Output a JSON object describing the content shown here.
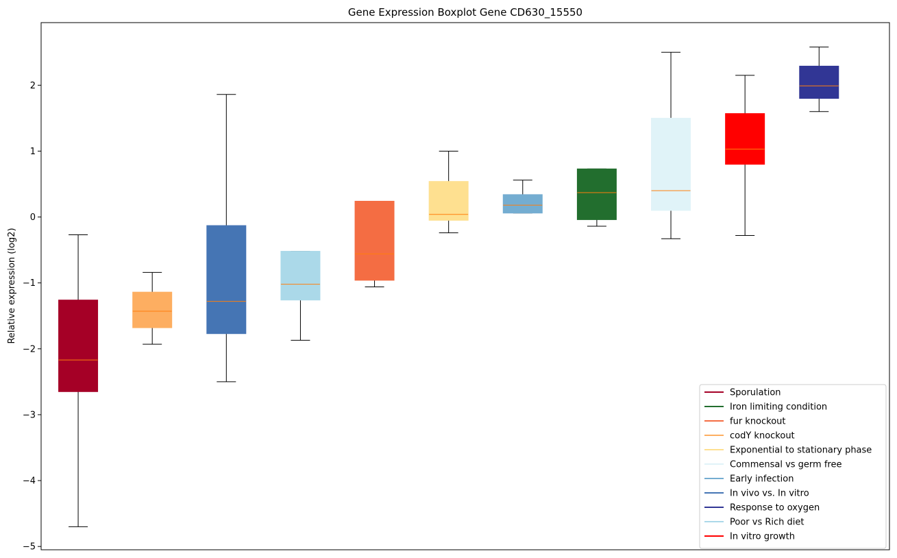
{
  "chart_data": {
    "type": "box",
    "title": "Gene Expression Boxplot Gene CD630_15550",
    "xlabel": "",
    "ylabel": "Relative expression (log2)",
    "ylim": [
      -5.05,
      2.95
    ],
    "yticks": [
      -5,
      -4,
      -3,
      -2,
      -1,
      0,
      1,
      2
    ],
    "ytick_labels": [
      "−5",
      "−4",
      "−3",
      "−2",
      "−1",
      "0",
      "1",
      "2"
    ],
    "median_color": "#ff7f0e",
    "boxes": [
      {
        "category": "Sporulation",
        "color": "#a50026",
        "whisker_low": -4.7,
        "q1": -2.65,
        "median": -2.17,
        "q3": -1.26,
        "whisker_high": -0.27
      },
      {
        "category": "codY knockout",
        "color": "#fdae61",
        "whisker_low": -1.93,
        "q1": -1.68,
        "median": -1.43,
        "q3": -1.14,
        "whisker_high": -0.84
      },
      {
        "category": "In vivo vs. In vitro",
        "color": "#4575b4",
        "whisker_low": -2.5,
        "q1": -1.77,
        "median": -1.28,
        "q3": -0.13,
        "whisker_high": 1.86
      },
      {
        "category": "Poor vs Rich diet",
        "color": "#abd9e9",
        "whisker_low": -1.87,
        "q1": -1.26,
        "median": -1.02,
        "q3": -0.52,
        "whisker_high": -0.52
      },
      {
        "category": "fur knockout",
        "color": "#f46d43",
        "whisker_low": -1.06,
        "q1": -0.96,
        "median": -0.56,
        "q3": 0.24,
        "whisker_high": 0.24
      },
      {
        "category": "Exponential to stationary phase",
        "color": "#fee090",
        "whisker_low": -0.24,
        "q1": -0.05,
        "median": 0.04,
        "q3": 0.54,
        "whisker_high": 1.0
      },
      {
        "category": "Early infection",
        "color": "#74add1",
        "whisker_low": 0.06,
        "q1": 0.06,
        "median": 0.18,
        "q3": 0.34,
        "whisker_high": 0.56
      },
      {
        "category": "Iron limiting condition",
        "color": "#226e2e",
        "whisker_low": -0.14,
        "q1": -0.04,
        "median": 0.37,
        "q3": 0.73,
        "whisker_high": 0.73
      },
      {
        "category": "Commensal vs germ free",
        "color": "#e0f3f8",
        "whisker_low": -0.33,
        "q1": 0.1,
        "median": 0.4,
        "q3": 1.5,
        "whisker_high": 2.5
      },
      {
        "category": "In vitro growth",
        "color": "#ff0000",
        "whisker_low": -0.28,
        "q1": 0.8,
        "median": 1.03,
        "q3": 1.57,
        "whisker_high": 2.15
      },
      {
        "category": "Response to oxygen",
        "color": "#313695",
        "whisker_low": 1.6,
        "q1": 1.8,
        "median": 1.99,
        "q3": 2.29,
        "whisker_high": 2.58
      }
    ],
    "legend": {
      "placement": "bottom-right",
      "entries": [
        {
          "label": "Sporulation",
          "color": "#a50026"
        },
        {
          "label": "Iron limiting condition",
          "color": "#226e2e"
        },
        {
          "label": "fur knockout",
          "color": "#f46d43"
        },
        {
          "label": "codY knockout",
          "color": "#fdae61"
        },
        {
          "label": "Exponential to stationary phase",
          "color": "#fee090"
        },
        {
          "label": "Commensal vs germ free",
          "color": "#e0f3f8"
        },
        {
          "label": "Early infection",
          "color": "#74add1"
        },
        {
          "label": "In vivo vs. In vitro",
          "color": "#4575b4"
        },
        {
          "label": "Response to oxygen",
          "color": "#313695"
        },
        {
          "label": "Poor vs Rich diet",
          "color": "#abd9e9"
        },
        {
          "label": "In vitro growth",
          "color": "#ff0000"
        }
      ]
    }
  }
}
